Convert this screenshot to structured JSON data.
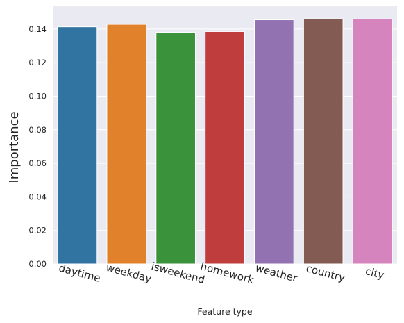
{
  "chart_data": {
    "type": "bar",
    "categories": [
      "daytime",
      "weekday",
      "isweekend",
      "homework",
      "weather",
      "country",
      "city"
    ],
    "values": [
      0.1413,
      0.1428,
      0.138,
      0.1385,
      0.1455,
      0.146,
      0.146
    ],
    "xlabel": "Feature type",
    "ylabel": "Importance",
    "ylim": [
      0,
      0.154
    ],
    "yticks": [
      "0.00",
      "0.02",
      "0.04",
      "0.06",
      "0.08",
      "0.10",
      "0.12",
      "0.14"
    ],
    "grid": true,
    "background": "#eaeaf2",
    "colors": [
      "#3274a1",
      "#e1812c",
      "#3a923a",
      "#c03d3e",
      "#9372b2",
      "#845b53",
      "#d684bd"
    ]
  }
}
